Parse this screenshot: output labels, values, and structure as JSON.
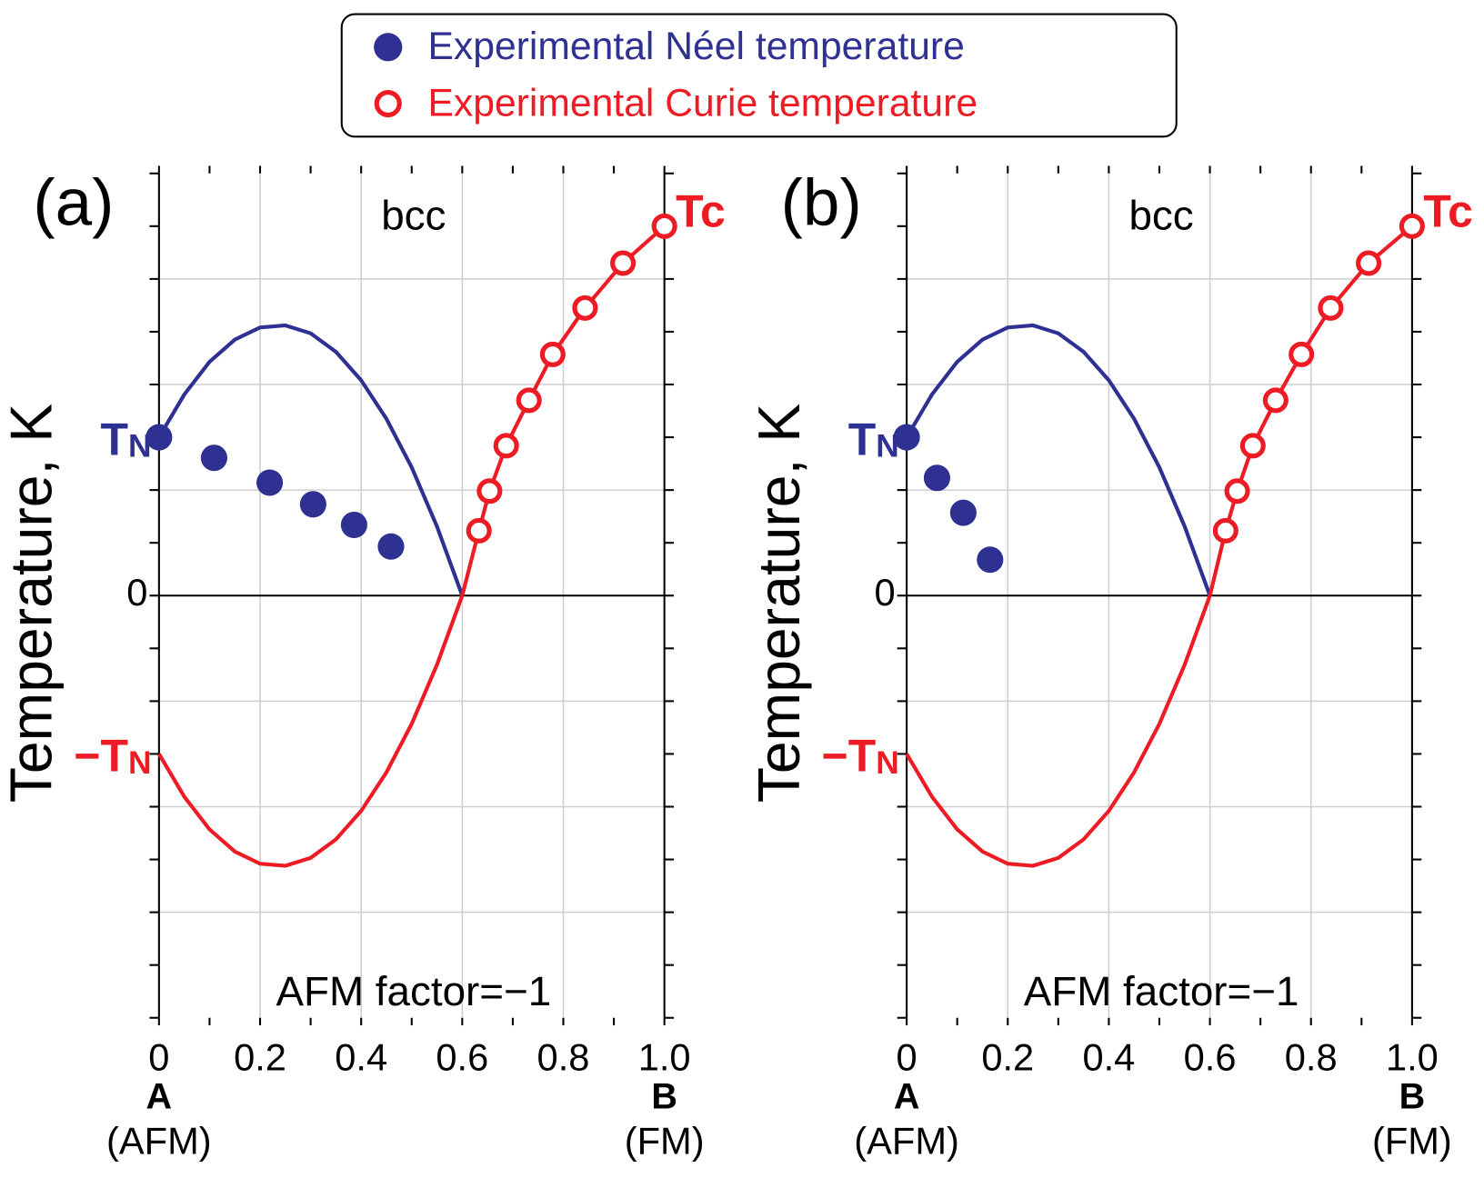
{
  "chart_data": [
    {
      "type": "scatter",
      "panel_label": "(a)",
      "annotation": "bcc",
      "note": "AFM factor=−1",
      "ylabel": "Temperature, K",
      "xlim": [
        0,
        1
      ],
      "ylim": [
        -8,
        8
      ],
      "xticks": [
        0,
        0.2,
        0.4,
        0.6,
        0.8,
        {
          "value": 1,
          "label": "1.0"
        }
      ],
      "xminor": [
        0,
        0.1,
        0.2,
        0.3,
        0.4,
        0.5,
        0.6,
        0.7,
        0.8,
        0.9,
        1
      ],
      "xgrid": [
        0.2,
        0.4,
        0.6,
        0.8
      ],
      "yticks": [
        0
      ],
      "yminor": [
        -8,
        -7,
        -6,
        -5,
        -4,
        -3,
        -2,
        -1,
        0,
        1,
        2,
        3,
        4,
        5,
        6,
        7,
        8
      ],
      "ygrid": [
        -6,
        -4,
        -2,
        2,
        4,
        6
      ],
      "x_end_labels": [
        {
          "main": "A",
          "sub": "(AFM)"
        },
        {
          "main": "B",
          "sub": "(FM)"
        }
      ],
      "level_labels": [
        {
          "y": 3,
          "main": "T",
          "sub": "N",
          "color": "#2e3192"
        },
        {
          "y": -3,
          "main": "−T",
          "sub": "N",
          "color": "#ed1c24"
        },
        {
          "y": 7,
          "main": "Tc",
          "color": "#ed1c24"
        }
      ],
      "series": [
        {
          "name": "Experimental Néel temperature",
          "color": "#2e3192",
          "filled": true,
          "x": [
            0,
            0.109,
            0.219,
            0.305,
            0.386,
            0.459
          ],
          "values": [
            3.0,
            2.61,
            2.14,
            1.73,
            1.34,
            0.93
          ]
        },
        {
          "name": "Experimental Curie temperature",
          "color": "#ed1c24",
          "filled": false,
          "x": [
            0.633,
            0.654,
            0.687,
            0.732,
            0.779,
            0.843,
            0.918,
            1.0
          ],
          "values": [
            1.23,
            1.98,
            2.84,
            3.7,
            4.57,
            5.45,
            6.3,
            7.0
          ]
        }
      ],
      "curves": [
        {
          "color": "#2e3192",
          "x": [
            0,
            0.05,
            0.1,
            0.15,
            0.2,
            0.25,
            0.3,
            0.35,
            0.4,
            0.45,
            0.5,
            0.55,
            0.6
          ],
          "y": [
            3,
            3.81,
            4.43,
            4.85,
            5.08,
            5.12,
            4.97,
            4.62,
            4.08,
            3.35,
            2.43,
            1.31,
            0
          ]
        },
        {
          "color": "#ed1c24",
          "x": [
            0,
            0.05,
            0.1,
            0.15,
            0.2,
            0.25,
            0.3,
            0.35,
            0.4,
            0.45,
            0.5,
            0.55,
            0.6
          ],
          "y": [
            -3,
            -3.81,
            -4.43,
            -4.85,
            -5.08,
            -5.12,
            -4.97,
            -4.62,
            -4.08,
            -3.35,
            -2.43,
            -1.31,
            0
          ]
        },
        {
          "color": "#ed1c24",
          "x": [
            0.6,
            0.633,
            0.654,
            0.687,
            0.732,
            0.779,
            0.843,
            0.918,
            1.0
          ],
          "y": [
            0,
            1.23,
            1.98,
            2.84,
            3.7,
            4.57,
            5.45,
            6.3,
            7.0
          ]
        }
      ]
    },
    {
      "type": "scatter",
      "panel_label": "(b)",
      "annotation": "bcc",
      "note": "AFM factor=−1",
      "ylabel": "Temperature, K",
      "xlim": [
        0,
        1
      ],
      "ylim": [
        -8,
        8
      ],
      "xticks": [
        0,
        0.2,
        0.4,
        0.6,
        0.8,
        {
          "value": 1,
          "label": "1.0"
        }
      ],
      "xminor": [
        0,
        0.1,
        0.2,
        0.3,
        0.4,
        0.5,
        0.6,
        0.7,
        0.8,
        0.9,
        1
      ],
      "xgrid": [
        0.2,
        0.4,
        0.6,
        0.8
      ],
      "yticks": [
        0
      ],
      "yminor": [
        -8,
        -7,
        -6,
        -5,
        -4,
        -3,
        -2,
        -1,
        0,
        1,
        2,
        3,
        4,
        5,
        6,
        7,
        8
      ],
      "ygrid": [
        -6,
        -4,
        -2,
        2,
        4,
        6
      ],
      "x_end_labels": [
        {
          "main": "A",
          "sub": "(AFM)"
        },
        {
          "main": "B",
          "sub": "(FM)"
        }
      ],
      "level_labels": [
        {
          "y": 3,
          "main": "T",
          "sub": "N",
          "color": "#2e3192"
        },
        {
          "y": -3,
          "main": "−T",
          "sub": "N",
          "color": "#ed1c24"
        },
        {
          "y": 7,
          "main": "Tc",
          "color": "#ed1c24"
        }
      ],
      "series": [
        {
          "color": "#2e3192",
          "filled": true,
          "x": [
            0,
            0.06,
            0.112,
            0.165
          ],
          "values": [
            3.0,
            2.23,
            1.57,
            0.68
          ]
        },
        {
          "color": "#ed1c24",
          "filled": false,
          "x": [
            0.631,
            0.654,
            0.685,
            0.73,
            0.781,
            0.839,
            0.914,
            1.0
          ],
          "values": [
            1.23,
            1.98,
            2.84,
            3.7,
            4.57,
            5.45,
            6.3,
            7.0
          ]
        }
      ],
      "curves": [
        {
          "color": "#2e3192",
          "x": [
            0,
            0.05,
            0.1,
            0.15,
            0.2,
            0.25,
            0.3,
            0.35,
            0.4,
            0.45,
            0.5,
            0.55,
            0.6
          ],
          "y": [
            3,
            3.81,
            4.43,
            4.85,
            5.08,
            5.12,
            4.97,
            4.62,
            4.08,
            3.35,
            2.43,
            1.31,
            0
          ]
        },
        {
          "color": "#ed1c24",
          "x": [
            0,
            0.05,
            0.1,
            0.15,
            0.2,
            0.25,
            0.3,
            0.35,
            0.4,
            0.45,
            0.5,
            0.55,
            0.6
          ],
          "y": [
            -3,
            -3.81,
            -4.43,
            -4.85,
            -5.08,
            -5.12,
            -4.97,
            -4.62,
            -4.08,
            -3.35,
            -2.43,
            -1.31,
            0
          ]
        },
        {
          "color": "#ed1c24",
          "x": [
            0.6,
            0.631,
            0.654,
            0.685,
            0.73,
            0.781,
            0.839,
            0.914,
            1.0
          ],
          "y": [
            0,
            1.23,
            1.98,
            2.84,
            3.7,
            4.57,
            5.45,
            6.3,
            7.0
          ]
        }
      ]
    }
  ]
}
